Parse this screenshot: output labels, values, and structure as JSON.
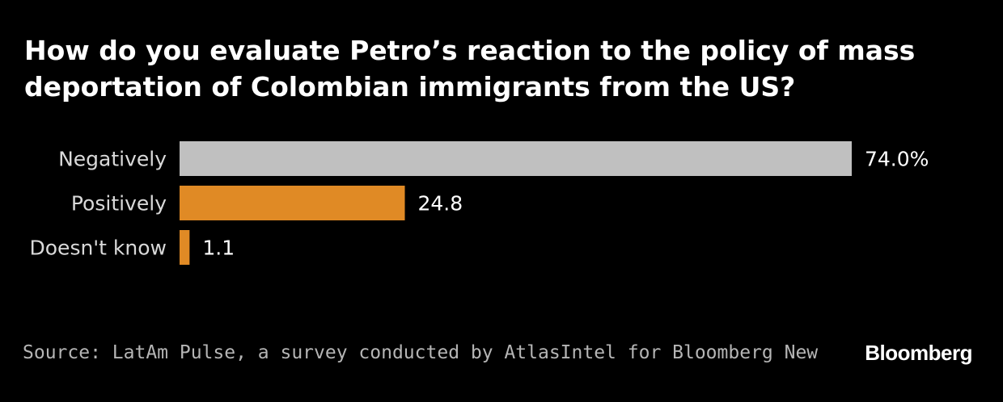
{
  "title": "How do you evaluate Petro’s reaction to the policy of mass deportation of Colombian immigrants from the US?",
  "source": "Source: LatAm Pulse, a survey conducted by AtlasIntel for Bloomberg New",
  "brand": "Bloomberg",
  "colors": {
    "background": "#000000",
    "highlight_bar": "#c0c0c0",
    "accent_bar": "#e08a25",
    "text": "#ffffff",
    "category_text": "#d9d9d9",
    "source_text": "#b5b5b5"
  },
  "chart_data": {
    "type": "bar",
    "orientation": "horizontal",
    "categories": [
      "Negatively",
      "Positively",
      "Doesn't know"
    ],
    "values": [
      74.0,
      24.8,
      1.1
    ],
    "value_labels": [
      "74.0%",
      "24.8",
      "1.1"
    ],
    "unit": "%",
    "xlim": [
      0,
      74.0
    ],
    "bar_colors": [
      "#c0c0c0",
      "#e08a25",
      "#e08a25"
    ],
    "grid": false,
    "legend": "none"
  }
}
